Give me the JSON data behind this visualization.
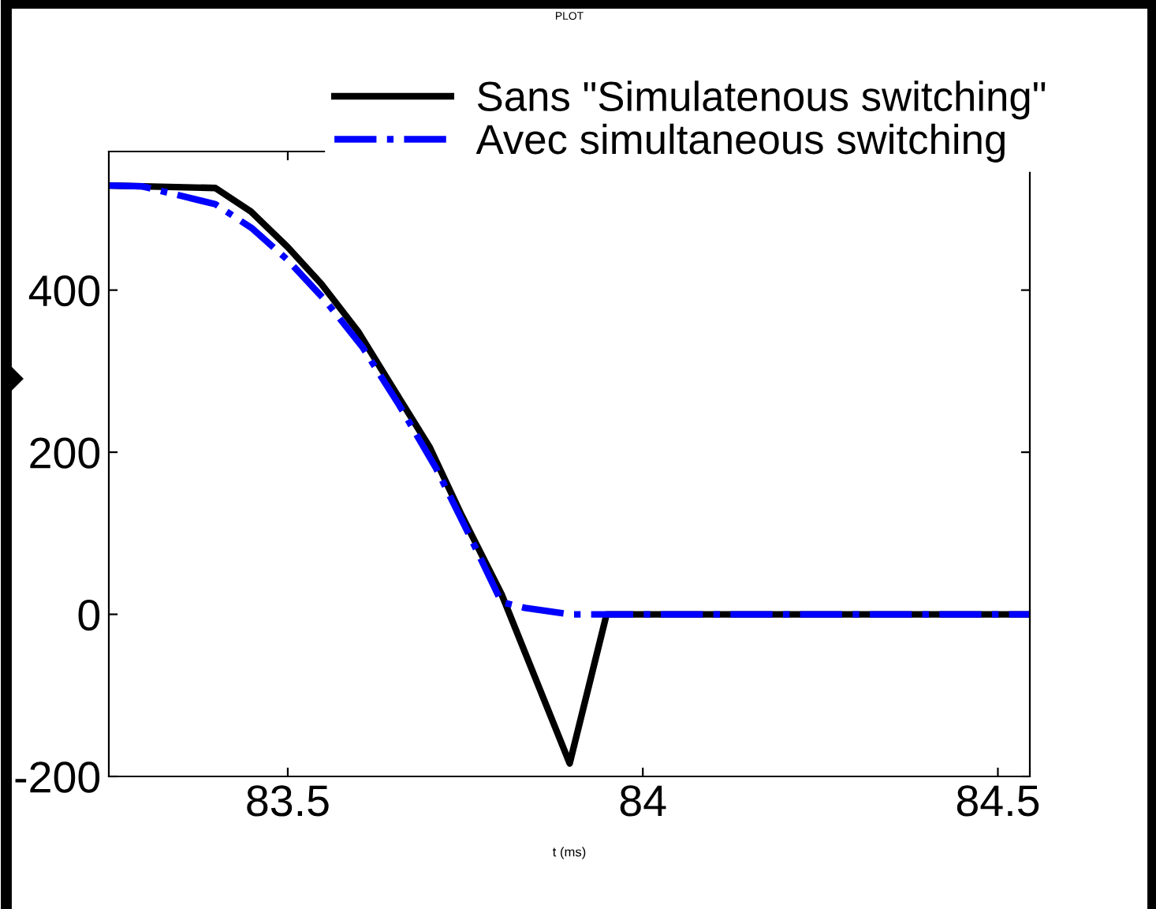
{
  "chart_data": {
    "type": "line",
    "title": "PLOT",
    "xlabel": "t (ms)",
    "series": [
      {
        "name": "Sans \"Simulatenous switching\"",
        "color": "#000000",
        "line_style": "solid",
        "x": [
          83.248,
          83.398,
          83.448,
          83.5,
          83.547,
          83.599,
          83.649,
          83.7,
          83.745,
          83.801,
          83.897,
          83.949,
          84.545
        ],
        "values": [
          529,
          526,
          497,
          453,
          408,
          349,
          278,
          206,
          122,
          25,
          -184,
          0,
          0
        ]
      },
      {
        "name": "Avec simultaneous switching",
        "color": "#0000ff",
        "line_style": "dashdot",
        "x": [
          83.248,
          83.295,
          83.398,
          83.45,
          83.5,
          83.552,
          83.605,
          83.657,
          83.709,
          83.76,
          83.801,
          83.834,
          83.897,
          84.545
        ],
        "values": [
          529,
          528,
          506,
          476,
          437,
          388,
          330,
          258,
          180,
          90,
          15,
          8,
          0,
          0
        ]
      }
    ],
    "xlim": [
      83.248,
      84.545
    ],
    "xticks": [
      83.5,
      84,
      84.5
    ],
    "ylim": [
      -200,
      571
    ],
    "yticks": [
      -200,
      0,
      200,
      400
    ],
    "grid": false,
    "legend": "top right"
  }
}
